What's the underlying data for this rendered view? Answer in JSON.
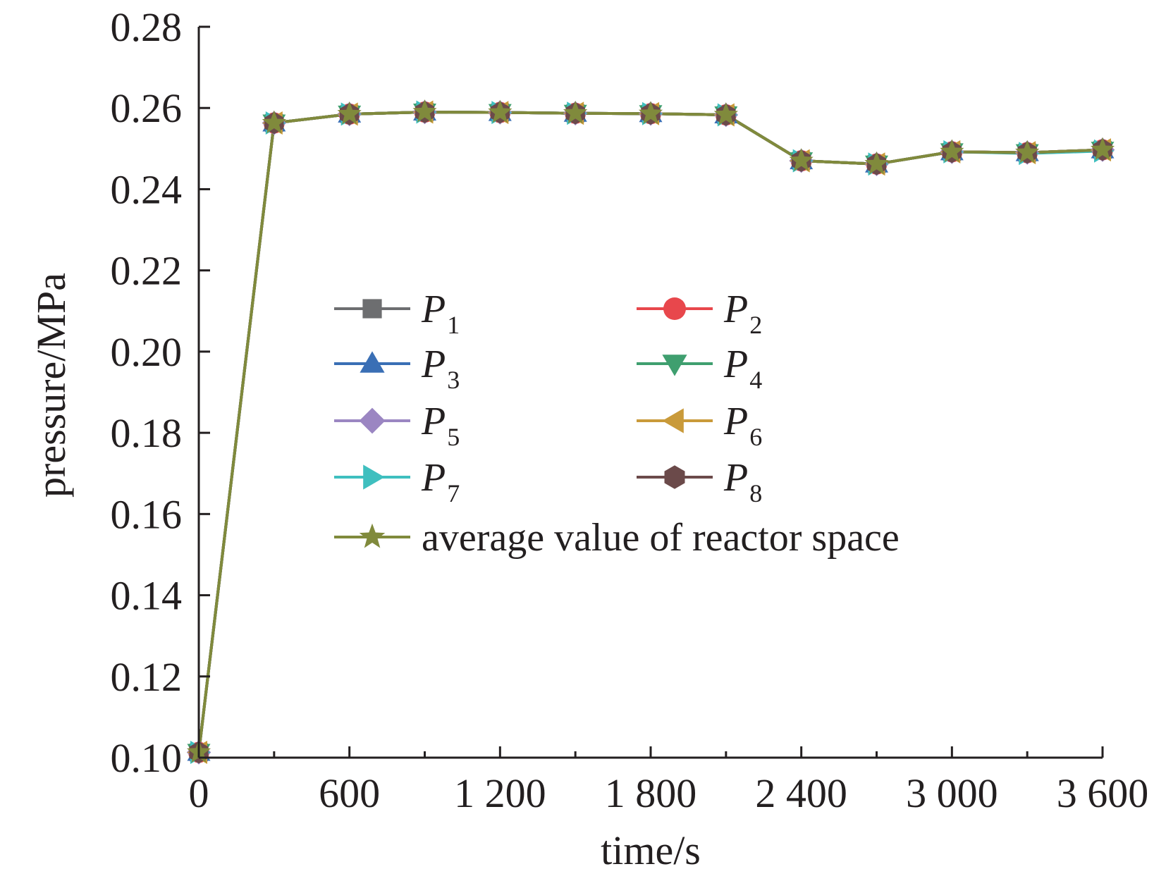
{
  "chart_data": {
    "type": "line",
    "title": "",
    "xlabel": "time/s",
    "ylabel": "pressure/MPa",
    "xlim": [
      0,
      3600
    ],
    "ylim": [
      0.1,
      0.28
    ],
    "x_ticks": [
      0,
      600,
      1200,
      1800,
      2400,
      3000,
      3600
    ],
    "x_tick_labels": [
      "0",
      "600",
      "1 200",
      "1 800",
      "2 400",
      "3 000",
      "3 600"
    ],
    "y_ticks": [
      0.1,
      0.12,
      0.14,
      0.16,
      0.18,
      0.2,
      0.22,
      0.24,
      0.26,
      0.28
    ],
    "y_tick_labels": [
      "0.10",
      "0.12",
      "0.14",
      "0.16",
      "0.18",
      "0.20",
      "0.22",
      "0.24",
      "0.26",
      "0.28"
    ],
    "grid": false,
    "legend_position": "center",
    "x": [
      0,
      300,
      600,
      900,
      1200,
      1500,
      1800,
      2100,
      2400,
      2700,
      3000,
      3300,
      3600
    ],
    "series": [
      {
        "name_main": "P",
        "name_sub": "1",
        "color": "#6d6e70",
        "marker": "square",
        "values": [
          0.1013,
          0.2563,
          0.2585,
          0.259,
          0.2589,
          0.2587,
          0.2586,
          0.2583,
          0.247,
          0.2462,
          0.2492,
          0.249,
          0.2497
        ]
      },
      {
        "name_main": "P",
        "name_sub": "2",
        "color": "#e8474c",
        "marker": "circle",
        "values": [
          0.1013,
          0.2563,
          0.2585,
          0.259,
          0.2589,
          0.2587,
          0.2586,
          0.2583,
          0.247,
          0.2462,
          0.2492,
          0.249,
          0.2497
        ]
      },
      {
        "name_main": "P",
        "name_sub": "3",
        "color": "#3a6fb5",
        "marker": "triangle-up",
        "values": [
          0.1013,
          0.2563,
          0.2585,
          0.259,
          0.2589,
          0.2587,
          0.2586,
          0.2583,
          0.247,
          0.2462,
          0.2492,
          0.249,
          0.2497
        ]
      },
      {
        "name_main": "P",
        "name_sub": "4",
        "color": "#3f9f6f",
        "marker": "triangle-down",
        "values": [
          0.1013,
          0.2563,
          0.2585,
          0.259,
          0.2589,
          0.2587,
          0.2586,
          0.2583,
          0.247,
          0.2462,
          0.2492,
          0.249,
          0.2496
        ]
      },
      {
        "name_main": "P",
        "name_sub": "5",
        "color": "#9b86c2",
        "marker": "diamond",
        "values": [
          0.1013,
          0.2563,
          0.2585,
          0.259,
          0.2589,
          0.2587,
          0.2586,
          0.2583,
          0.247,
          0.2462,
          0.2492,
          0.249,
          0.2497
        ]
      },
      {
        "name_main": "P",
        "name_sub": "6",
        "color": "#c99a3a",
        "marker": "triangle-left",
        "values": [
          0.1013,
          0.2563,
          0.2585,
          0.259,
          0.2589,
          0.2587,
          0.2586,
          0.2583,
          0.247,
          0.2462,
          0.2492,
          0.249,
          0.2497
        ]
      },
      {
        "name_main": "P",
        "name_sub": "7",
        "color": "#3fbfbf",
        "marker": "triangle-right",
        "values": [
          0.1013,
          0.2563,
          0.2585,
          0.259,
          0.2589,
          0.2587,
          0.2586,
          0.2583,
          0.247,
          0.2462,
          0.2492,
          0.2488,
          0.2494
        ]
      },
      {
        "name_main": "P",
        "name_sub": "8",
        "color": "#6b4a4a",
        "marker": "hexagon",
        "values": [
          0.1013,
          0.2563,
          0.2585,
          0.259,
          0.2589,
          0.2587,
          0.2586,
          0.2583,
          0.247,
          0.2462,
          0.2492,
          0.249,
          0.2497
        ]
      },
      {
        "name_main": "average value of reactor space",
        "name_sub": "",
        "color": "#808a3c",
        "marker": "star",
        "values": [
          0.1013,
          0.2563,
          0.2585,
          0.259,
          0.2589,
          0.2587,
          0.2586,
          0.2583,
          0.247,
          0.2462,
          0.2492,
          0.249,
          0.2497
        ]
      }
    ]
  }
}
